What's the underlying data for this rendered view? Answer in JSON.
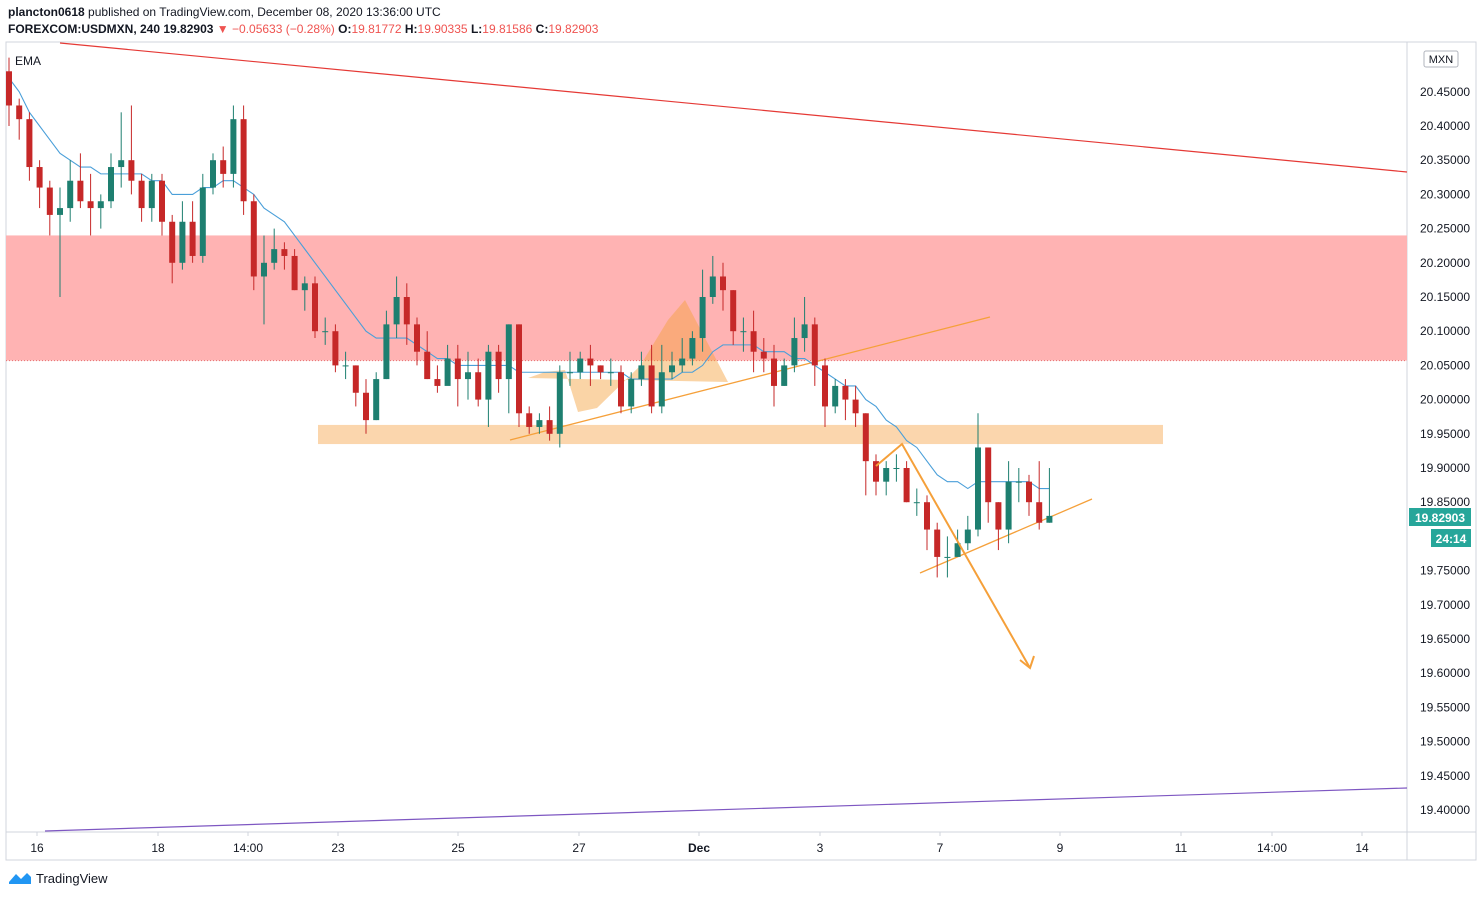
{
  "header": {
    "author": "plancton0618",
    "published_text": "published on TradingView.com, December 08, 2020 13:36:00 UTC",
    "symbol": "FOREXCOM:USDMXN, 240",
    "last": "19.82903",
    "change": "−0.05633 (−0.28%)",
    "o_label": "O:",
    "o": "19.81772",
    "h_label": "H:",
    "h": "19.90335",
    "l_label": "L:",
    "l": "19.81586",
    "c_label": "C:",
    "c": "19.82903"
  },
  "indicator_label": "EMA",
  "currency_badge": "MXN",
  "price_label": "19.82903",
  "countdown_label": "24:14",
  "footer": {
    "brand": "TradingView"
  },
  "colors": {
    "up": "#26a69a",
    "up_body": "#1e7f70",
    "down": "#c62828",
    "ema": "#4a9fd9",
    "resistance_zone": "#ffb3b3",
    "support_zone": "#fbd6ad",
    "orange": "#f5a03a",
    "red_line": "#e53935",
    "purple_line": "#7e57c2"
  },
  "chart_data": {
    "type": "candlestick",
    "ylim": [
      19.37,
      20.51
    ],
    "y_ticks": [
      "20.45000",
      "20.40000",
      "20.35000",
      "20.30000",
      "20.25000",
      "20.20000",
      "20.15000",
      "20.10000",
      "20.05000",
      "20.00000",
      "19.95000",
      "19.90000",
      "19.85000",
      "19.75000",
      "19.70000",
      "19.65000",
      "19.60000",
      "19.55000",
      "19.50000",
      "19.45000",
      "19.40000"
    ],
    "x_ticks": [
      "16",
      "18",
      "14:00",
      "23",
      "25",
      "27",
      "Dec",
      "3",
      "7",
      "9",
      "11",
      "14:00",
      "14"
    ],
    "resistance_zone": [
      20.057,
      20.24
    ],
    "support_zone": [
      19.935,
      19.963
    ],
    "candles": [
      [
        20.48,
        20.43,
        20.5,
        20.4
      ],
      [
        20.43,
        20.41,
        20.44,
        20.38
      ],
      [
        20.41,
        20.34,
        20.42,
        20.32
      ],
      [
        20.34,
        20.31,
        20.35,
        20.28
      ],
      [
        20.31,
        20.27,
        20.32,
        20.24
      ],
      [
        20.27,
        20.28,
        20.31,
        20.15
      ],
      [
        20.28,
        20.32,
        20.35,
        20.26
      ],
      [
        20.32,
        20.29,
        20.36,
        20.28
      ],
      [
        20.29,
        20.28,
        20.33,
        20.24
      ],
      [
        20.28,
        20.29,
        20.3,
        20.25
      ],
      [
        20.29,
        20.34,
        20.36,
        20.28
      ],
      [
        20.34,
        20.35,
        20.42,
        20.31
      ],
      [
        20.35,
        20.32,
        20.43,
        20.3
      ],
      [
        20.32,
        20.28,
        20.33,
        20.26
      ],
      [
        20.28,
        20.32,
        20.33,
        20.26
      ],
      [
        20.32,
        20.26,
        20.33,
        20.24
      ],
      [
        20.26,
        20.2,
        20.27,
        20.17
      ],
      [
        20.2,
        20.26,
        20.29,
        20.19
      ],
      [
        20.26,
        20.21,
        20.29,
        20.2
      ],
      [
        20.21,
        20.31,
        20.33,
        20.2
      ],
      [
        20.31,
        20.35,
        20.36,
        20.3
      ],
      [
        20.35,
        20.33,
        20.37,
        20.31
      ],
      [
        20.33,
        20.41,
        20.43,
        20.31
      ],
      [
        20.41,
        20.29,
        20.43,
        20.27
      ],
      [
        20.29,
        20.18,
        20.3,
        20.16
      ],
      [
        20.18,
        20.2,
        20.24,
        20.11
      ],
      [
        20.2,
        20.22,
        20.25,
        20.19
      ],
      [
        20.22,
        20.21,
        20.23,
        20.19
      ],
      [
        20.21,
        20.16,
        20.22,
        20.16
      ],
      [
        20.16,
        20.17,
        20.18,
        20.13
      ],
      [
        20.17,
        20.1,
        20.18,
        20.09
      ],
      [
        20.1,
        20.1,
        20.12,
        20.08
      ],
      [
        20.1,
        20.05,
        20.11,
        20.04
      ],
      [
        20.05,
        20.05,
        20.07,
        20.03
      ],
      [
        20.05,
        20.01,
        20.05,
        19.99
      ],
      [
        20.01,
        19.97,
        20.03,
        19.95
      ],
      [
        19.97,
        20.03,
        20.04,
        19.97
      ],
      [
        20.03,
        20.11,
        20.13,
        20.03
      ],
      [
        20.11,
        20.15,
        20.18,
        20.09
      ],
      [
        20.15,
        20.11,
        20.17,
        20.08
      ],
      [
        20.11,
        20.07,
        20.12,
        20.05
      ],
      [
        20.07,
        20.03,
        20.1,
        20.03
      ],
      [
        20.03,
        20.02,
        20.05,
        20.01
      ],
      [
        20.02,
        20.06,
        20.08,
        20.04
      ],
      [
        20.06,
        20.03,
        20.08,
        19.99
      ],
      [
        20.03,
        20.04,
        20.07,
        20.0
      ],
      [
        20.04,
        20.0,
        20.06,
        19.99
      ],
      [
        20.0,
        20.07,
        20.08,
        19.96
      ],
      [
        20.07,
        20.03,
        20.08,
        20.01
      ],
      [
        20.03,
        20.11,
        20.11,
        19.98
      ],
      [
        20.11,
        19.98,
        20.11,
        19.96
      ],
      [
        19.98,
        19.96,
        19.99,
        19.95
      ],
      [
        19.96,
        19.97,
        19.98,
        19.95
      ],
      [
        19.97,
        19.95,
        19.99,
        19.94
      ],
      [
        19.95,
        20.04,
        20.05,
        19.93
      ],
      [
        20.04,
        20.04,
        20.07,
        20.02
      ],
      [
        20.04,
        20.06,
        20.07,
        20.03
      ],
      [
        20.06,
        20.05,
        20.08,
        20.02
      ],
      [
        20.05,
        20.04,
        20.05,
        20.03
      ],
      [
        20.04,
        20.04,
        20.06,
        20.02
      ],
      [
        20.04,
        19.99,
        20.05,
        19.98
      ],
      [
        19.99,
        20.03,
        20.04,
        19.98
      ],
      [
        20.03,
        20.05,
        20.07,
        20.02
      ],
      [
        20.05,
        19.99,
        20.08,
        19.98
      ],
      [
        19.99,
        20.04,
        20.08,
        19.98
      ],
      [
        20.04,
        20.05,
        20.07,
        20.03
      ],
      [
        20.05,
        20.06,
        20.09,
        20.04
      ],
      [
        20.06,
        20.09,
        20.1,
        20.05
      ],
      [
        20.09,
        20.15,
        20.19,
        20.07
      ],
      [
        20.15,
        20.18,
        20.21,
        20.14
      ],
      [
        20.18,
        20.16,
        20.2,
        20.13
      ],
      [
        20.16,
        20.1,
        20.16,
        20.08
      ],
      [
        20.1,
        20.1,
        20.12,
        20.07
      ],
      [
        20.1,
        20.07,
        20.13,
        20.04
      ],
      [
        20.07,
        20.06,
        20.09,
        20.04
      ],
      [
        20.06,
        20.02,
        20.08,
        19.99
      ],
      [
        20.02,
        20.05,
        20.06,
        20.02
      ],
      [
        20.05,
        20.09,
        20.12,
        20.04
      ],
      [
        20.09,
        20.11,
        20.15,
        20.07
      ],
      [
        20.11,
        20.05,
        20.12,
        20.02
      ],
      [
        20.05,
        19.99,
        20.06,
        19.96
      ],
      [
        19.99,
        20.02,
        20.03,
        19.98
      ],
      [
        20.02,
        20.0,
        20.03,
        19.97
      ],
      [
        20.0,
        19.98,
        20.02,
        19.96
      ],
      [
        19.98,
        19.91,
        19.98,
        19.86
      ],
      [
        19.91,
        19.88,
        19.92,
        19.86
      ],
      [
        19.88,
        19.9,
        19.91,
        19.86
      ],
      [
        19.9,
        19.9,
        19.92,
        19.88
      ],
      [
        19.9,
        19.85,
        19.91,
        19.85
      ],
      [
        19.85,
        19.85,
        19.87,
        19.83
      ],
      [
        19.85,
        19.81,
        19.86,
        19.78
      ],
      [
        19.81,
        19.77,
        19.82,
        19.74
      ],
      [
        19.77,
        19.77,
        19.8,
        19.74
      ],
      [
        19.77,
        19.79,
        19.81,
        19.77
      ],
      [
        19.79,
        19.81,
        19.83,
        19.78
      ],
      [
        19.81,
        19.93,
        19.98,
        19.8
      ],
      [
        19.93,
        19.85,
        19.93,
        19.82
      ],
      [
        19.85,
        19.81,
        19.85,
        19.78
      ],
      [
        19.81,
        19.88,
        19.91,
        19.79
      ],
      [
        19.88,
        19.88,
        19.9,
        19.85
      ],
      [
        19.88,
        19.85,
        19.89,
        19.83
      ],
      [
        19.85,
        19.82,
        19.91,
        19.81
      ],
      [
        19.82,
        19.83,
        19.9,
        19.82
      ]
    ],
    "ema": [
      20.47,
      20.45,
      20.42,
      20.4,
      20.38,
      20.36,
      20.35,
      20.34,
      20.34,
      20.33,
      20.33,
      20.33,
      20.33,
      20.33,
      20.32,
      20.32,
      20.3,
      20.3,
      20.3,
      20.31,
      20.31,
      20.32,
      20.32,
      20.31,
      20.3,
      20.28,
      20.27,
      20.26,
      20.24,
      20.22,
      20.2,
      20.18,
      20.16,
      20.14,
      20.12,
      20.1,
      20.09,
      20.09,
      20.09,
      20.09,
      20.08,
      20.07,
      20.06,
      20.06,
      20.05,
      20.05,
      20.05,
      20.05,
      20.05,
      20.05,
      20.04,
      20.04,
      20.04,
      20.04,
      20.04,
      20.04,
      20.04,
      20.04,
      20.04,
      20.04,
      20.04,
      20.03,
      20.03,
      20.03,
      20.03,
      20.03,
      20.04,
      20.04,
      20.05,
      20.07,
      20.08,
      20.08,
      20.08,
      20.08,
      20.07,
      20.07,
      20.07,
      20.06,
      20.06,
      20.05,
      20.04,
      20.03,
      20.02,
      20.02,
      20.0,
      19.99,
      19.97,
      19.96,
      19.94,
      19.93,
      19.91,
      19.89,
      19.88,
      19.88,
      19.87,
      19.88,
      19.88,
      19.88,
      19.88,
      19.88,
      19.88,
      19.87,
      19.87
    ]
  }
}
